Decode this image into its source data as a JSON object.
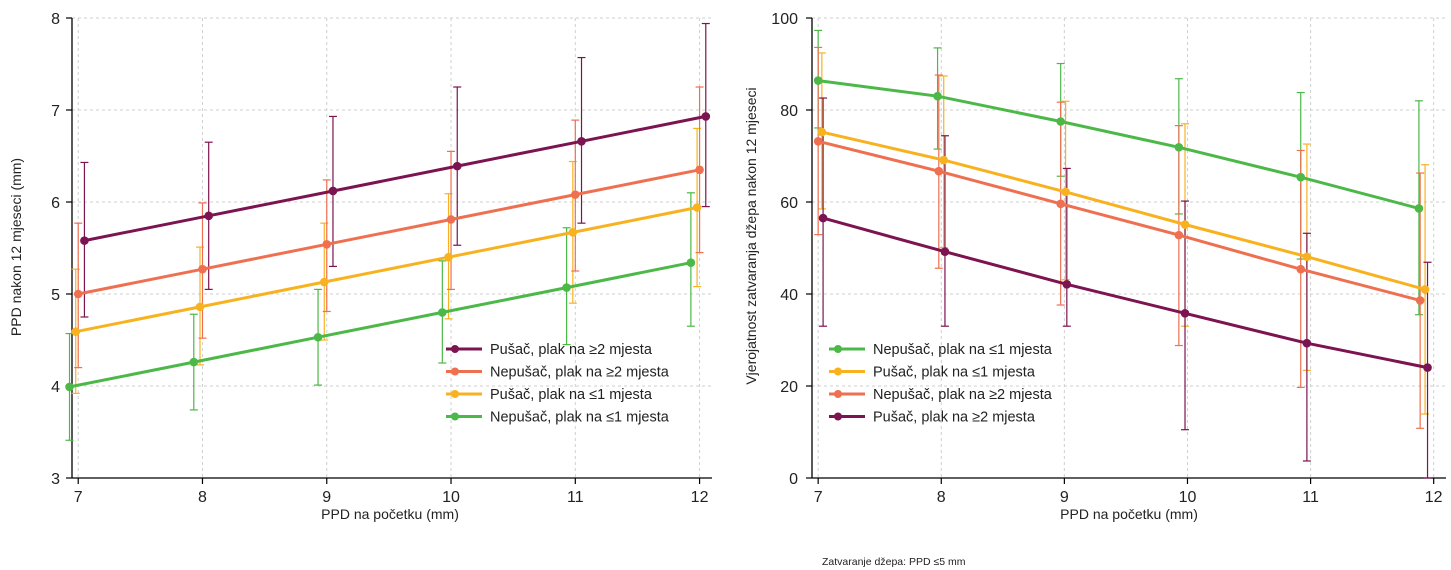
{
  "chart_data": [
    {
      "type": "line",
      "title": "",
      "xlabel": "PPD na početku (mm)",
      "ylabel": "PPD nakon 12 mjeseci (mm)",
      "xlim": [
        6.95,
        12.1
      ],
      "ylim": [
        3,
        8
      ],
      "xticks": [
        7,
        8,
        9,
        10,
        11,
        12
      ],
      "yticks": [
        3,
        4,
        5,
        6,
        7,
        8
      ],
      "grid": true,
      "legend_position": "bottom-right",
      "legend_order": [
        "s2",
        "n2",
        "s1",
        "n1"
      ],
      "series": {
        "s2": {
          "name": "Pušač, plak na ≥2 mjesta",
          "color": "#7b1450",
          "x": [
            7.05,
            8.05,
            9.05,
            10.05,
            11.05,
            12.05
          ],
          "y": [
            5.58,
            5.85,
            6.12,
            6.39,
            6.66,
            6.93
          ],
          "lo": [
            4.75,
            5.05,
            5.3,
            5.53,
            5.77,
            5.95
          ],
          "hi": [
            6.43,
            6.65,
            6.93,
            7.25,
            7.57,
            7.94
          ]
        },
        "n2": {
          "name": "Nepušač, plak na ≥2 mjesta",
          "color": "#ee7050",
          "x": [
            7.0,
            8.0,
            9.0,
            10.0,
            11.0,
            12.0
          ],
          "y": [
            5.0,
            5.27,
            5.54,
            5.81,
            6.08,
            6.35
          ],
          "lo": [
            4.2,
            4.52,
            4.81,
            5.05,
            5.25,
            5.45
          ],
          "hi": [
            5.77,
            5.99,
            6.24,
            6.55,
            6.89,
            7.25
          ]
        },
        "s1": {
          "name": "Pušač, plak na ≤1 mjesta",
          "color": "#f8b220",
          "x": [
            6.98,
            7.98,
            8.98,
            9.98,
            10.98,
            11.98
          ],
          "y": [
            4.59,
            4.86,
            5.13,
            5.4,
            5.67,
            5.94
          ],
          "lo": [
            3.92,
            4.23,
            4.5,
            4.73,
            4.9,
            5.08
          ],
          "hi": [
            5.27,
            5.51,
            5.77,
            6.09,
            6.44,
            6.8
          ]
        },
        "n1": {
          "name": "Nepušač, plak na ≤1 mjesta",
          "color": "#4cb848",
          "x": [
            6.93,
            7.93,
            8.93,
            9.93,
            10.93,
            11.93
          ],
          "y": [
            3.99,
            4.26,
            4.53,
            4.8,
            5.07,
            5.34
          ],
          "lo": [
            3.41,
            3.74,
            4.01,
            4.25,
            4.45,
            4.65
          ],
          "hi": [
            4.57,
            4.78,
            5.05,
            5.36,
            5.72,
            6.1
          ]
        }
      }
    },
    {
      "type": "line",
      "title": "",
      "xlabel": "PPD na početku (mm)",
      "ylabel": "Vjerojatnost zatvaranja džepa nakon 12 mjeseci",
      "note": "Zatvaranje džepa: PPD ≤5 mm",
      "xlim": [
        6.95,
        12.1
      ],
      "ylim": [
        0,
        100
      ],
      "xticks": [
        7,
        8,
        9,
        10,
        11,
        12
      ],
      "yticks": [
        0,
        20,
        40,
        60,
        80,
        100
      ],
      "grid": true,
      "legend_position": "bottom-left",
      "legend_order": [
        "n1",
        "s1",
        "n2",
        "s2"
      ],
      "series": {
        "n1": {
          "name": "Nepušač, plak na ≤1 mjesta",
          "color": "#4cb848",
          "x": [
            7.0,
            7.97,
            8.97,
            9.93,
            10.92,
            11.88
          ],
          "y": [
            86.4,
            83.0,
            77.5,
            71.9,
            65.4,
            58.6
          ],
          "lo": [
            76.1,
            71.5,
            65.6,
            57.4,
            47.6,
            35.5
          ],
          "hi": [
            97.3,
            93.5,
            90.1,
            86.8,
            83.8,
            82.0
          ]
        },
        "s1": {
          "name": "Pušač, plak na ≤1 mjesta",
          "color": "#f8b220",
          "x": [
            7.03,
            8.02,
            9.01,
            9.98,
            10.97,
            11.93
          ],
          "y": [
            75.2,
            69.1,
            62.2,
            55.1,
            48.1,
            41.0
          ],
          "lo": [
            58.5,
            50.1,
            43.1,
            33.0,
            23.4,
            13.9
          ],
          "hi": [
            92.4,
            87.4,
            81.9,
            77.0,
            72.6,
            68.1
          ]
        },
        "n2": {
          "name": "Nepušač, plak na ≥2 mjesta",
          "color": "#ee7050",
          "x": [
            7.0,
            7.98,
            8.97,
            9.93,
            10.92,
            11.89
          ],
          "y": [
            73.2,
            66.7,
            59.6,
            52.8,
            45.4,
            38.6
          ],
          "lo": [
            52.9,
            45.6,
            37.6,
            28.8,
            19.7,
            10.8
          ],
          "hi": [
            93.6,
            87.6,
            81.7,
            76.6,
            71.2,
            66.3
          ]
        },
        "s2": {
          "name": "Pušač, plak na ≥2 mjesta",
          "color": "#7b1450",
          "x": [
            7.04,
            8.03,
            9.02,
            9.98,
            10.97,
            11.95
          ],
          "y": [
            56.5,
            49.2,
            42.1,
            35.8,
            29.3,
            24.0
          ],
          "lo": [
            33.0,
            33.0,
            33.0,
            10.5,
            3.7,
            0.0
          ],
          "hi": [
            82.6,
            74.4,
            67.3,
            60.2,
            53.2,
            46.9
          ]
        }
      }
    }
  ]
}
